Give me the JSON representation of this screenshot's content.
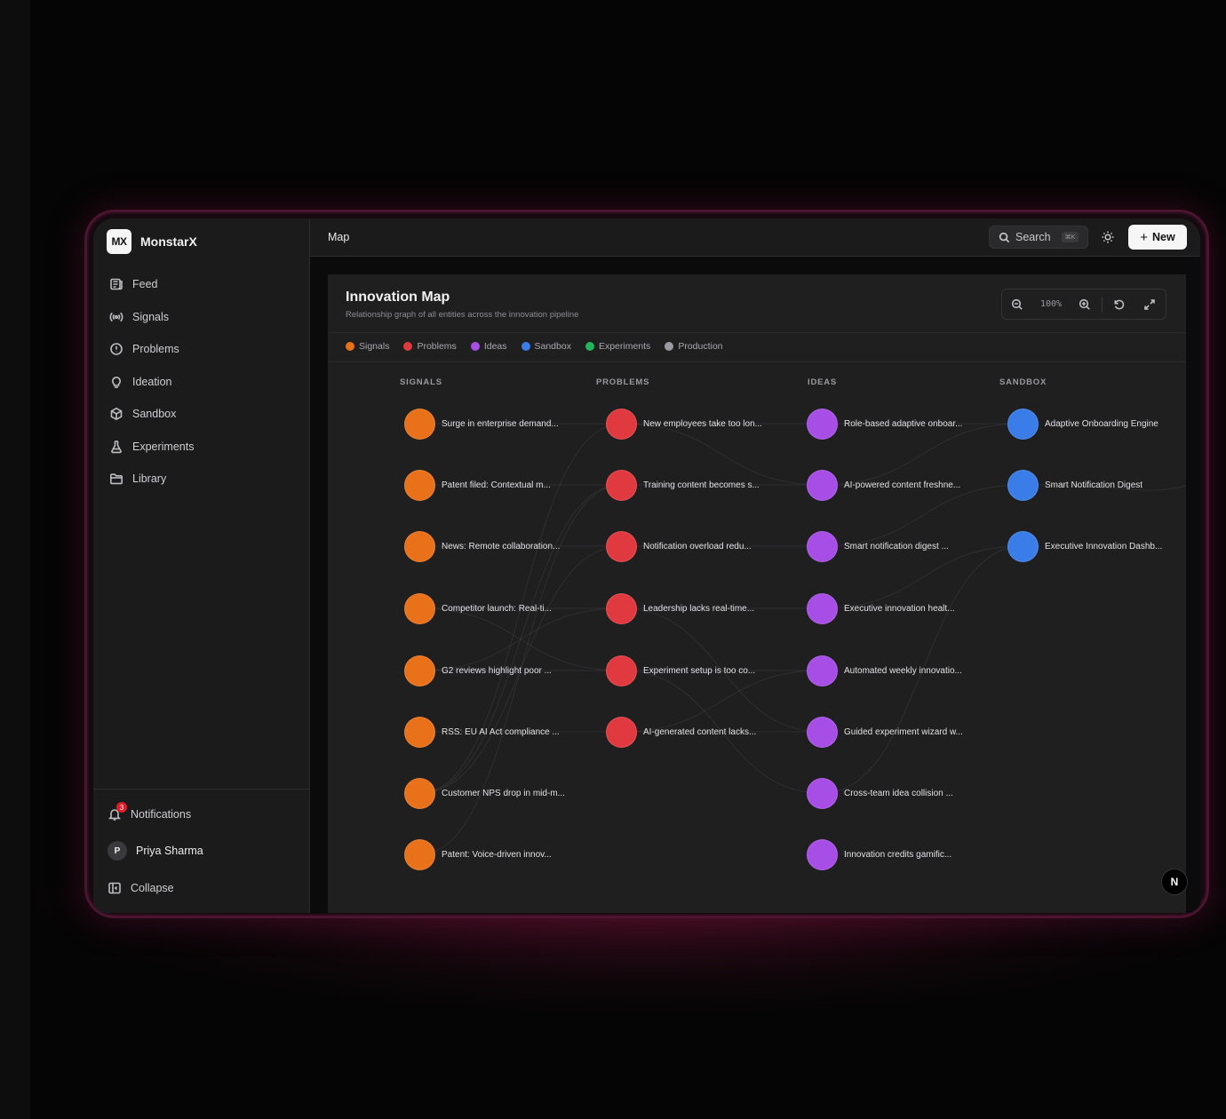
{
  "app": {
    "logo": "MX",
    "name": "MonstarX"
  },
  "sidebar": {
    "items": [
      {
        "label": "Feed",
        "icon": "newspaper-icon"
      },
      {
        "label": "Signals",
        "icon": "broadcast-icon"
      },
      {
        "label": "Problems",
        "icon": "alert-circle-icon"
      },
      {
        "label": "Ideation",
        "icon": "lightbulb-icon"
      },
      {
        "label": "Sandbox",
        "icon": "box-icon"
      },
      {
        "label": "Experiments",
        "icon": "flask-icon"
      },
      {
        "label": "Library",
        "icon": "folder-icon"
      }
    ],
    "notifications": {
      "label": "Notifications",
      "count": "3"
    },
    "user": {
      "initial": "P",
      "name": "Priya Sharma"
    },
    "collapse_label": "Collapse"
  },
  "topbar": {
    "breadcrumb": "Map",
    "search_label": "Search",
    "search_shortcut": "⌘K",
    "new_label": "New"
  },
  "map": {
    "title": "Innovation Map",
    "subtitle": "Relationship graph of all entities across the innovation pipeline",
    "zoom_level": "100%",
    "legend": [
      {
        "label": "Signals",
        "color": "#e8711a"
      },
      {
        "label": "Problems",
        "color": "#e0393f"
      },
      {
        "label": "Ideas",
        "color": "#a64ee6"
      },
      {
        "label": "Sandbox",
        "color": "#3a7ce8"
      },
      {
        "label": "Experiments",
        "color": "#23b35a"
      },
      {
        "label": "Production",
        "color": "#9a9aa2"
      }
    ],
    "columns": {
      "signals": {
        "header": "SIGNALS",
        "color": "#e8711a",
        "nodes": [
          "Surge in enterprise demand...",
          "Patent filed: Contextual m...",
          "News: Remote collaboration...",
          "Competitor launch: Real-ti...",
          "G2 reviews highlight poor ...",
          "RSS: EU AI Act compliance ...",
          "Customer NPS drop in mid-m...",
          "Patent: Voice-driven innov..."
        ]
      },
      "problems": {
        "header": "PROBLEMS",
        "color": "#e0393f",
        "nodes": [
          "New employees take too lon...",
          "Training content becomes s...",
          "Notification overload redu...",
          "Leadership lacks real-time...",
          "Experiment setup is too co...",
          "AI-generated content lacks..."
        ]
      },
      "ideas": {
        "header": "IDEAS",
        "color": "#a64ee6",
        "nodes": [
          "Role-based adaptive onboar...",
          "AI-powered content freshne...",
          "Smart notification digest ...",
          "Executive innovation healt...",
          "Automated weekly innovatio...",
          "Guided experiment wizard w...",
          "Cross-team idea collision ...",
          "Innovation credits gamific..."
        ]
      },
      "sandbox": {
        "header": "SANDBOX",
        "color": "#3a7ce8",
        "nodes": [
          "Adaptive Onboarding Engine",
          "Smart Notification Digest",
          "Executive Innovation Dashb..."
        ]
      }
    },
    "fab_label": "N"
  }
}
